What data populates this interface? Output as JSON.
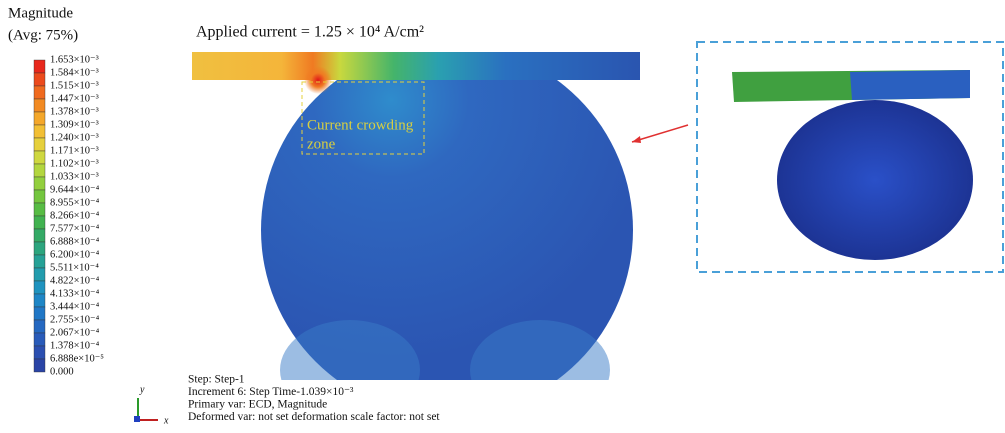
{
  "legend": {
    "title": "Magnitude",
    "subtitle": "(Avg: 75%)",
    "levels": [
      "1.653×10⁻³",
      "1.584×10⁻³",
      "1.515×10⁻³",
      "1.447×10⁻³",
      "1.378×10⁻³",
      "1.309×10⁻³",
      "1.240×10⁻³",
      "1.171×10⁻³",
      "1.102×10⁻³",
      "1.033×10⁻³",
      "9.644×10⁻⁴",
      "8.955×10⁻⁴",
      "8.266×10⁻⁴",
      "7.577×10⁻⁴",
      "6.888×10⁻⁴",
      "6.200×10⁻⁴",
      "5.511×10⁻⁴",
      "4.822×10⁻⁴",
      "4.133×10⁻⁴",
      "3.444×10⁻⁴",
      "2.755×10⁻⁴",
      "2.067×10⁻⁴",
      "1.378×10⁻⁴",
      "6.888e×10⁻⁵",
      "0.000"
    ],
    "colors": [
      "#e8281c",
      "#ec4a1c",
      "#f06a1e",
      "#f28a22",
      "#f4a72a",
      "#f2bf34",
      "#e6d03c",
      "#cfd840",
      "#b3d63f",
      "#93cf3e",
      "#74c63f",
      "#57bc44",
      "#41b250",
      "#34aa66",
      "#2ca57e",
      "#26a196",
      "#229cad",
      "#1f93bf",
      "#1e86c6",
      "#2077c6",
      "#2568c1",
      "#295bb9",
      "#2b4fb0",
      "#2a44a6"
    ]
  },
  "figure": {
    "title": "Applied current = 1.25 × 10⁴ A/cm²",
    "annotation": [
      "Current crowding",
      "zone"
    ]
  },
  "info": [
    "Step: Step-1",
    "Increment 6: Step Time-1.039×10⁻³",
    "Primary var: ECD, Magnitude",
    "Deformed var: not set deformation scale factor: not set"
  ],
  "axes": {
    "y": "y",
    "x": "x"
  }
}
